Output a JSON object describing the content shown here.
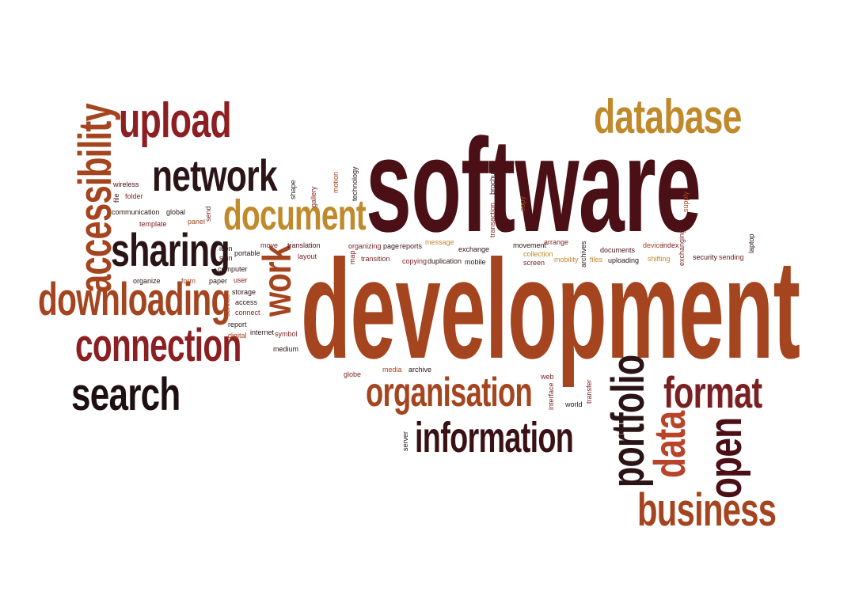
{
  "colors": {
    "dark_maroon": "#4a1016",
    "maroon": "#7a1f22",
    "rust": "#a5451f",
    "orange": "#c0622c",
    "gold": "#c08a2c",
    "black": "#1e1012",
    "background": "#ffffff"
  },
  "words": {
    "software": {
      "text": "software",
      "color": "#4a1016"
    },
    "development": {
      "text": "development",
      "color": "#a5451f"
    },
    "database": {
      "text": "database",
      "color": "#c08a2c"
    },
    "upload": {
      "text": "upload",
      "color": "#8c1f22"
    },
    "accessibility": {
      "text": "accessibility",
      "color": "#a5451f"
    },
    "network": {
      "text": "network",
      "color": "#2a1416"
    },
    "sharing": {
      "text": "sharing",
      "color": "#2a1416"
    },
    "document": {
      "text": "document",
      "color": "#c08a2c"
    },
    "work": {
      "text": "work",
      "color": "#a5451f"
    },
    "downloading": {
      "text": "downloading",
      "color": "#a5451f"
    },
    "connection": {
      "text": "connection",
      "color": "#8c1f22"
    },
    "search": {
      "text": "search",
      "color": "#1e1012"
    },
    "organisation": {
      "text": "organisation",
      "color": "#a5451f"
    },
    "information": {
      "text": "information",
      "color": "#3a1216"
    },
    "portfolio": {
      "text": "portfolio",
      "color": "#2a1416"
    },
    "format": {
      "text": "format",
      "color": "#7a1f22"
    },
    "data": {
      "text": "data",
      "color": "#b8442a"
    },
    "open": {
      "text": "open",
      "color": "#4a1016"
    },
    "business": {
      "text": "business",
      "color": "#a5451f"
    },
    "wireless": "wireless",
    "file": "file",
    "folder": "folder",
    "communication": "communication",
    "template": "template",
    "global": "global",
    "panel": "panel",
    "send": "send",
    "shape": "shape",
    "gallery": "gallery",
    "motion": "motion",
    "technology": "technology",
    "brochure": "brochure",
    "transaction": "transaction",
    "copy": "copy",
    "supply": "supply",
    "laptop": "laptop",
    "icon": "icon",
    "sign": "sign",
    "portable": "portable",
    "move": "move",
    "translation": "translation",
    "layout": "layout",
    "map": "map",
    "organizing": "organizing",
    "transition": "transition",
    "page": "page",
    "reports": "reports",
    "message": "message",
    "exchange": "exchange",
    "copying": "copying",
    "duplication": "duplication",
    "mobile": "mobile",
    "movement": "movement",
    "arrange": "arrange",
    "collection": "collection",
    "screen": "screen",
    "mobility": "mobility",
    "archives": "archives",
    "files": "files",
    "documents": "documents",
    "uploading": "uploading",
    "device": "device",
    "index": "index",
    "shifting": "shifting",
    "exchanging": "exchanging",
    "security": "security",
    "sending": "sending",
    "computer": "computer",
    "storage": "storage",
    "user": "user",
    "paper": "paper",
    "form": "form",
    "organize": "organize",
    "service": "service",
    "access": "access",
    "connect": "connect",
    "report": "report",
    "digital": "digital",
    "internet": "internet",
    "symbol": "symbol",
    "medium": "medium",
    "globe": "globe",
    "media": "media",
    "archive": "archive",
    "server": "server",
    "interface": "interface",
    "web": "web",
    "transfer": "transfer",
    "world": "world"
  }
}
